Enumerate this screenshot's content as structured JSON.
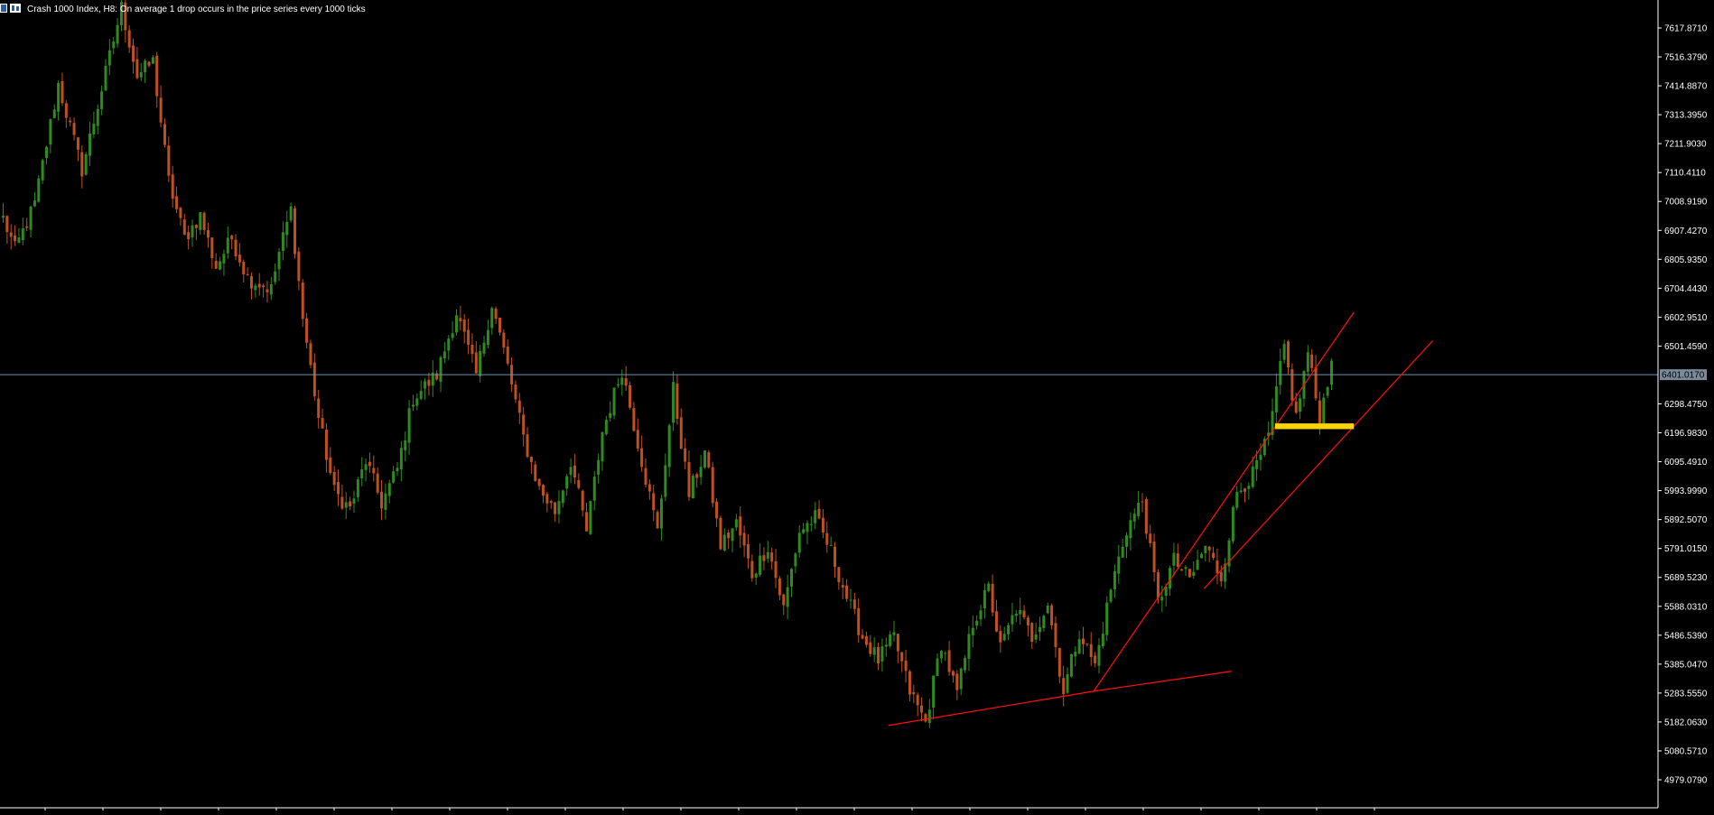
{
  "title": "Crash 1000 Index, H8:  On average 1 drop occurs in the price series every 1000 ticks",
  "colors": {
    "background": "#000000",
    "axis": "#ffffff",
    "bull_candle": "#2e8b1e",
    "bear_candle": "#c0501e",
    "current_price_line": "#6f8fa8",
    "current_price_label_bg": "#7a8a9a",
    "trendline": "#ff1010",
    "zone": "#ffd400"
  },
  "icons": [
    "chart-window-icon",
    "candlestick-icon"
  ],
  "chart_data": {
    "type": "candlestick",
    "symbol": "Crash 1000 Index",
    "timeframe": "H8",
    "ylim": [
      4900,
      7700
    ],
    "y_ticks": [
      "7617.8710",
      "7516.3790",
      "7414.8870",
      "7313.3950",
      "7211.9030",
      "7110.4110",
      "7008.9190",
      "6907.4270",
      "6805.9350",
      "6704.4430",
      "6602.9510",
      "6501.4590",
      "6298.4750",
      "6196.9830",
      "6095.4910",
      "5993.9990",
      "5892.5070",
      "5791.0150",
      "5689.5230",
      "5588.0310",
      "5486.5390",
      "5385.0470",
      "5283.5550",
      "5182.0630",
      "5080.5710",
      "4979.0790"
    ],
    "current_price": "6401.0170",
    "price_path": [
      [
        0,
        6950
      ],
      [
        3,
        6840
      ],
      [
        8,
        7000
      ],
      [
        14,
        7420
      ],
      [
        20,
        7120
      ],
      [
        26,
        7460
      ],
      [
        30,
        7690
      ],
      [
        34,
        7450
      ],
      [
        38,
        7500
      ],
      [
        42,
        7080
      ],
      [
        46,
        6880
      ],
      [
        50,
        6960
      ],
      [
        54,
        6780
      ],
      [
        58,
        6880
      ],
      [
        62,
        6740
      ],
      [
        68,
        6700
      ],
      [
        70,
        6830
      ],
      [
        73,
        6980
      ],
      [
        76,
        6600
      ],
      [
        80,
        6250
      ],
      [
        84,
        5990
      ],
      [
        88,
        5930
      ],
      [
        92,
        6100
      ],
      [
        96,
        5950
      ],
      [
        100,
        6070
      ],
      [
        104,
        6320
      ],
      [
        110,
        6400
      ],
      [
        115,
        6620
      ],
      [
        120,
        6400
      ],
      [
        124,
        6650
      ],
      [
        128,
        6430
      ],
      [
        132,
        6180
      ],
      [
        136,
        6000
      ],
      [
        140,
        5920
      ],
      [
        144,
        6100
      ],
      [
        148,
        5850
      ],
      [
        152,
        6200
      ],
      [
        157,
        6420
      ],
      [
        162,
        6100
      ],
      [
        166,
        5850
      ],
      [
        170,
        6350
      ],
      [
        174,
        5980
      ],
      [
        178,
        6130
      ],
      [
        182,
        5800
      ],
      [
        186,
        5880
      ],
      [
        190,
        5700
      ],
      [
        194,
        5800
      ],
      [
        198,
        5580
      ],
      [
        202,
        5850
      ],
      [
        206,
        5900
      ],
      [
        210,
        5780
      ],
      [
        214,
        5620
      ],
      [
        218,
        5480
      ],
      [
        222,
        5400
      ],
      [
        226,
        5480
      ],
      [
        230,
        5290
      ],
      [
        234,
        5180
      ],
      [
        238,
        5460
      ],
      [
        242,
        5280
      ],
      [
        246,
        5530
      ],
      [
        250,
        5650
      ],
      [
        253,
        5440
      ],
      [
        257,
        5580
      ],
      [
        261,
        5480
      ],
      [
        265,
        5600
      ],
      [
        269,
        5290
      ],
      [
        273,
        5500
      ],
      [
        277,
        5380
      ],
      [
        281,
        5650
      ],
      [
        285,
        5860
      ],
      [
        289,
        5960
      ],
      [
        293,
        5600
      ],
      [
        297,
        5750
      ],
      [
        301,
        5680
      ],
      [
        305,
        5800
      ],
      [
        309,
        5690
      ],
      [
        313,
        5990
      ],
      [
        317,
        6050
      ],
      [
        321,
        6180
      ],
      [
        325,
        6500
      ],
      [
        328,
        6250
      ],
      [
        331,
        6480
      ],
      [
        334,
        6240
      ],
      [
        337,
        6450
      ]
    ],
    "trendlines": [
      {
        "from": [
          225,
          5170
        ],
        "to": [
          277,
          5290
        ]
      },
      {
        "from": [
          277,
          5290
        ],
        "to": [
          312,
          5360
        ]
      },
      {
        "from": [
          277,
          5290
        ],
        "to": [
          343,
          6620
        ]
      },
      {
        "from": [
          305,
          5650
        ],
        "to": [
          363,
          6520
        ]
      }
    ],
    "zones": [
      {
        "from": 323,
        "to": 343,
        "low": 6210,
        "high": 6230
      }
    ]
  }
}
